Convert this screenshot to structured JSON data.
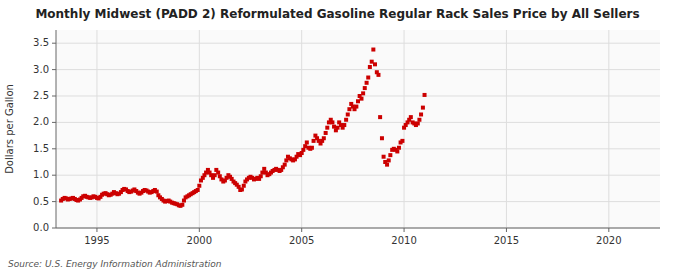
{
  "chart_data": {
    "type": "scatter",
    "title": "Monthly Midwest (PADD 2) Reformulated Gasoline Regular Rack Sales Price by All Sellers",
    "ylabel": "Dollars per Gallon",
    "annotations": [
      "Source: U.S. Energy Information Administration"
    ],
    "color": "#cc0000",
    "marker": "square",
    "grid": true,
    "xlim": [
      1993.0,
      2022.5
    ],
    "ylim": [
      0.0,
      3.75
    ],
    "xticks": [
      1995,
      2000,
      2005,
      2010,
      2015,
      2020
    ],
    "yticks": [
      {
        "value": 0.0,
        "label": "0.0"
      },
      0.5,
      {
        "value": 1.0,
        "label": "1.0"
      },
      1.5,
      {
        "value": 2.0,
        "label": "2.0"
      },
      2.5,
      {
        "value": 3.0,
        "label": "3.0"
      },
      3.5
    ],
    "x": [
      1993.25,
      1993.33,
      1993.42,
      1993.5,
      1993.58,
      1993.67,
      1993.75,
      1993.83,
      1993.92,
      1994.0,
      1994.08,
      1994.17,
      1994.25,
      1994.33,
      1994.42,
      1994.5,
      1994.58,
      1994.67,
      1994.75,
      1994.83,
      1994.92,
      1995.0,
      1995.08,
      1995.17,
      1995.25,
      1995.33,
      1995.42,
      1995.5,
      1995.58,
      1995.67,
      1995.75,
      1995.83,
      1995.92,
      1996.0,
      1996.08,
      1996.17,
      1996.25,
      1996.33,
      1996.42,
      1996.5,
      1996.58,
      1996.67,
      1996.75,
      1996.83,
      1996.92,
      1997.0,
      1997.08,
      1997.17,
      1997.25,
      1997.33,
      1997.42,
      1997.5,
      1997.58,
      1997.67,
      1997.75,
      1997.83,
      1997.92,
      1998.0,
      1998.08,
      1998.17,
      1998.25,
      1998.33,
      1998.42,
      1998.5,
      1998.58,
      1998.67,
      1998.75,
      1998.83,
      1998.92,
      1999.0,
      1999.08,
      1999.17,
      1999.25,
      1999.33,
      1999.42,
      1999.5,
      1999.58,
      1999.67,
      1999.75,
      1999.83,
      1999.92,
      2000.0,
      2000.08,
      2000.17,
      2000.25,
      2000.33,
      2000.42,
      2000.5,
      2000.58,
      2000.67,
      2000.75,
      2000.83,
      2000.92,
      2001.0,
      2001.08,
      2001.17,
      2001.25,
      2001.33,
      2001.42,
      2001.5,
      2001.58,
      2001.67,
      2001.75,
      2001.83,
      2001.92,
      2002.0,
      2002.08,
      2002.17,
      2002.25,
      2002.33,
      2002.42,
      2002.5,
      2002.58,
      2002.67,
      2002.75,
      2002.83,
      2002.92,
      2003.0,
      2003.08,
      2003.17,
      2003.25,
      2003.33,
      2003.42,
      2003.5,
      2003.58,
      2003.67,
      2003.75,
      2003.83,
      2003.92,
      2004.0,
      2004.08,
      2004.17,
      2004.25,
      2004.33,
      2004.42,
      2004.5,
      2004.58,
      2004.67,
      2004.75,
      2004.83,
      2004.92,
      2005.0,
      2005.08,
      2005.17,
      2005.25,
      2005.33,
      2005.42,
      2005.5,
      2005.58,
      2005.67,
      2005.75,
      2005.83,
      2005.92,
      2006.0,
      2006.08,
      2006.17,
      2006.25,
      2006.33,
      2006.42,
      2006.5,
      2006.58,
      2006.67,
      2006.75,
      2006.83,
      2006.92,
      2007.0,
      2007.08,
      2007.17,
      2007.25,
      2007.33,
      2007.42,
      2007.5,
      2007.58,
      2007.67,
      2007.75,
      2007.83,
      2007.92,
      2008.0,
      2008.08,
      2008.17,
      2008.25,
      2008.33,
      2008.42,
      2008.5,
      2008.58,
      2008.67,
      2008.75,
      2008.83,
      2008.92,
      2009.0,
      2009.08,
      2009.17,
      2009.25,
      2009.33,
      2009.42,
      2009.5,
      2009.58,
      2009.67,
      2009.75,
      2009.83,
      2009.92,
      2010.0,
      2010.08,
      2010.17,
      2010.25,
      2010.33,
      2010.42,
      2010.5,
      2010.58,
      2010.67,
      2010.75,
      2010.83,
      2010.92,
      2011.0
    ],
    "values": [
      0.52,
      0.55,
      0.57,
      0.56,
      0.54,
      0.55,
      0.56,
      0.57,
      0.55,
      0.53,
      0.52,
      0.54,
      0.57,
      0.6,
      0.61,
      0.59,
      0.58,
      0.57,
      0.58,
      0.6,
      0.59,
      0.57,
      0.56,
      0.59,
      0.63,
      0.65,
      0.66,
      0.64,
      0.62,
      0.63,
      0.65,
      0.68,
      0.66,
      0.64,
      0.65,
      0.68,
      0.72,
      0.74,
      0.73,
      0.7,
      0.68,
      0.69,
      0.71,
      0.73,
      0.7,
      0.67,
      0.65,
      0.67,
      0.7,
      0.72,
      0.71,
      0.69,
      0.67,
      0.68,
      0.7,
      0.72,
      0.69,
      0.62,
      0.58,
      0.55,
      0.52,
      0.5,
      0.51,
      0.52,
      0.5,
      0.48,
      0.47,
      0.46,
      0.45,
      0.43,
      0.42,
      0.44,
      0.52,
      0.58,
      0.6,
      0.62,
      0.64,
      0.66,
      0.68,
      0.7,
      0.72,
      0.8,
      0.9,
      0.95,
      1.0,
      1.05,
      1.1,
      1.05,
      1.0,
      0.95,
      1.0,
      1.1,
      1.05,
      0.98,
      0.92,
      0.88,
      0.9,
      0.95,
      1.0,
      0.97,
      0.93,
      0.88,
      0.85,
      0.82,
      0.78,
      0.72,
      0.73,
      0.8,
      0.88,
      0.92,
      0.95,
      0.97,
      0.95,
      0.92,
      0.93,
      0.95,
      0.93,
      0.98,
      1.05,
      1.12,
      1.05,
      1.0,
      1.02,
      1.05,
      1.08,
      1.1,
      1.12,
      1.1,
      1.08,
      1.1,
      1.15,
      1.2,
      1.28,
      1.35,
      1.32,
      1.3,
      1.28,
      1.3,
      1.35,
      1.4,
      1.38,
      1.42,
      1.48,
      1.55,
      1.62,
      1.52,
      1.5,
      1.52,
      1.65,
      1.75,
      1.7,
      1.65,
      1.6,
      1.65,
      1.7,
      1.8,
      1.9,
      2.0,
      2.05,
      2.0,
      1.92,
      1.85,
      1.9,
      2.0,
      1.95,
      1.9,
      1.95,
      2.05,
      2.15,
      2.25,
      2.35,
      2.3,
      2.25,
      2.3,
      2.4,
      2.5,
      2.45,
      2.55,
      2.65,
      2.75,
      2.85,
      3.05,
      3.15,
      3.38,
      3.1,
      2.95,
      2.9,
      2.1,
      1.7,
      1.35,
      1.25,
      1.2,
      1.28,
      1.38,
      1.48,
      1.5,
      1.48,
      1.45,
      1.52,
      1.62,
      1.65,
      1.9,
      1.95,
      2.0,
      2.05,
      2.1,
      2.0,
      1.98,
      1.95,
      1.98,
      2.05,
      2.15,
      2.28,
      2.52
    ]
  }
}
